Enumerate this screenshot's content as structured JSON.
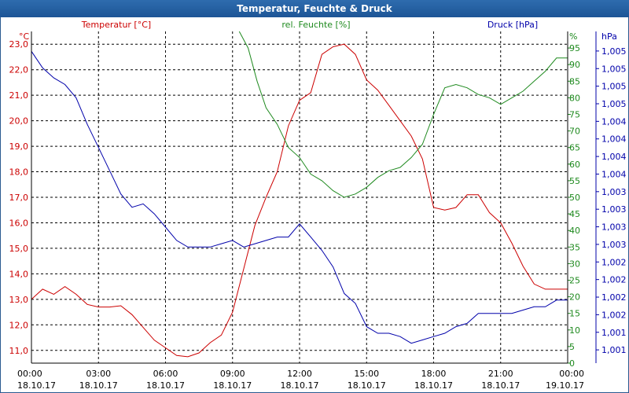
{
  "window": {
    "title": "Temperatur, Feuchte & Druck"
  },
  "colors": {
    "temperature": "#cc0000",
    "humidity": "#1f8a1f",
    "pressure": "#0000aa",
    "grid": "#000000",
    "axis": "#000000"
  },
  "chart_data": {
    "type": "line",
    "title": "Temperatur, Feuchte & Druck",
    "x_ticks": [
      {
        "hours": 0,
        "time": "00:00",
        "date": "18.10.17"
      },
      {
        "hours": 3,
        "time": "03:00",
        "date": "18.10.17"
      },
      {
        "hours": 6,
        "time": "06:00",
        "date": "18.10.17"
      },
      {
        "hours": 9,
        "time": "09:00",
        "date": "18.10.17"
      },
      {
        "hours": 12,
        "time": "12:00",
        "date": "18.10.17"
      },
      {
        "hours": 15,
        "time": "15:00",
        "date": "18.10.17"
      },
      {
        "hours": 18,
        "time": "18:00",
        "date": "18.10.17"
      },
      {
        "hours": 21,
        "time": "21:00",
        "date": "18.10.17"
      },
      {
        "hours": 24,
        "time": "00:00",
        "date": "19.10.17"
      }
    ],
    "xlim": [
      0,
      24
    ],
    "axes": {
      "temperature": {
        "label": "Temperatur [°C]",
        "unit": "°C",
        "ylim": [
          10.5,
          23.5
        ],
        "ticks": [
          {
            "v": 11.0,
            "t": "11,0"
          },
          {
            "v": 12.0,
            "t": "12,0"
          },
          {
            "v": 13.0,
            "t": "13,0"
          },
          {
            "v": 14.0,
            "t": "14,0"
          },
          {
            "v": 15.0,
            "t": "15,0"
          },
          {
            "v": 16.0,
            "t": "16,0"
          },
          {
            "v": 17.0,
            "t": "17,0"
          },
          {
            "v": 18.0,
            "t": "18,0"
          },
          {
            "v": 19.0,
            "t": "19,0"
          },
          {
            "v": 20.0,
            "t": "20,0"
          },
          {
            "v": 21.0,
            "t": "21,0"
          },
          {
            "v": 22.0,
            "t": "22,0"
          },
          {
            "v": 23.0,
            "t": "23,0"
          }
        ]
      },
      "humidity": {
        "label": "rel. Feuchte [%]",
        "unit": "%",
        "ylim": [
          0,
          100
        ],
        "ticks": [
          {
            "v": 0,
            "t": "0"
          },
          {
            "v": 5,
            "t": "5"
          },
          {
            "v": 10,
            "t": "10"
          },
          {
            "v": 15,
            "t": "15"
          },
          {
            "v": 20,
            "t": "20"
          },
          {
            "v": 25,
            "t": "25"
          },
          {
            "v": 30,
            "t": "30"
          },
          {
            "v": 35,
            "t": "35"
          },
          {
            "v": 40,
            "t": "40"
          },
          {
            "v": 45,
            "t": "45"
          },
          {
            "v": 50,
            "t": "50"
          },
          {
            "v": 55,
            "t": "55"
          },
          {
            "v": 60,
            "t": "60"
          },
          {
            "v": 65,
            "t": "65"
          },
          {
            "v": 70,
            "t": "70"
          },
          {
            "v": 75,
            "t": "75"
          },
          {
            "v": 80,
            "t": "80"
          },
          {
            "v": 85,
            "t": "85"
          },
          {
            "v": 90,
            "t": "90"
          },
          {
            "v": 95,
            "t": "95"
          }
        ]
      },
      "pressure": {
        "label": "Druck [hPa]",
        "unit": "hPa",
        "ylim": [
          0,
          100
        ],
        "ticks": [
          {
            "v": 4,
            "t": "1,001"
          },
          {
            "v": 9.3,
            "t": "1,001"
          },
          {
            "v": 14.6,
            "t": "1,002"
          },
          {
            "v": 19.9,
            "t": "1,002"
          },
          {
            "v": 25.2,
            "t": "1,002"
          },
          {
            "v": 30.5,
            "t": "1,002"
          },
          {
            "v": 35.8,
            "t": "1,003"
          },
          {
            "v": 41.1,
            "t": "1,003"
          },
          {
            "v": 46.4,
            "t": "1,003"
          },
          {
            "v": 51.7,
            "t": "1,003"
          },
          {
            "v": 57,
            "t": "1,004"
          },
          {
            "v": 62.3,
            "t": "1,004"
          },
          {
            "v": 67.6,
            "t": "1,004"
          },
          {
            "v": 72.9,
            "t": "1,004"
          },
          {
            "v": 78.2,
            "t": "1,005"
          },
          {
            "v": 83.5,
            "t": "1,005"
          },
          {
            "v": 88.8,
            "t": "1,005"
          },
          {
            "v": 94.1,
            "t": "1,005"
          }
        ]
      }
    },
    "series": [
      {
        "name": "Temperatur [°C]",
        "axis": "temperature",
        "x": [
          0,
          0.5,
          1,
          1.5,
          2,
          2.5,
          3,
          3.5,
          4,
          4.5,
          5,
          5.5,
          6,
          6.5,
          7,
          7.5,
          8,
          8.5,
          9,
          9.5,
          10,
          10.5,
          11,
          11.5,
          12,
          12.5,
          13,
          13.5,
          14,
          14.5,
          15,
          15.5,
          16,
          16.5,
          17,
          17.5,
          18,
          18.5,
          19,
          19.5,
          20,
          20.5,
          21,
          21.5,
          22,
          22.5,
          23,
          23.5,
          24
        ],
        "values": [
          13.0,
          13.4,
          13.2,
          13.5,
          13.2,
          12.8,
          12.7,
          12.7,
          12.75,
          12.4,
          11.9,
          11.4,
          11.1,
          10.8,
          10.75,
          10.9,
          11.3,
          11.6,
          12.5,
          14.2,
          15.9,
          17.0,
          18.0,
          19.8,
          20.8,
          21.1,
          22.6,
          22.9,
          23.0,
          22.6,
          21.6,
          21.2,
          20.6,
          20.0,
          19.4,
          18.5,
          16.6,
          16.5,
          16.6,
          17.1,
          17.1,
          16.4,
          16.0,
          15.2,
          14.3,
          13.6,
          13.4,
          13.4,
          13.4
        ]
      },
      {
        "name": "rel. Feuchte [%]",
        "axis": "humidity",
        "x": [
          9.3,
          9.7,
          10.1,
          10.5,
          11,
          11.5,
          12,
          12.5,
          13,
          13.5,
          14,
          14.5,
          15,
          15.5,
          16,
          16.5,
          17,
          17.5,
          18,
          18.5,
          19,
          19.5,
          20,
          20.5,
          21,
          21.5,
          22,
          22.5,
          23,
          23.5,
          24
        ],
        "values": [
          100,
          95,
          85,
          77,
          72,
          65,
          62,
          57,
          55,
          52,
          50,
          51,
          53,
          56,
          58,
          59,
          62,
          66,
          75,
          83,
          84,
          83,
          81,
          80,
          78,
          80,
          82,
          85,
          88,
          92,
          92
        ]
      },
      {
        "name": "Druck [hPa]",
        "axis": "pressure",
        "x": [
          0,
          0.5,
          1,
          1.5,
          2,
          2.5,
          3,
          3.5,
          4,
          4.5,
          5,
          5.5,
          6,
          6.5,
          7,
          7.5,
          8,
          8.5,
          9,
          9.5,
          10,
          10.5,
          11,
          11.5,
          12,
          12.5,
          13,
          13.5,
          14,
          14.5,
          15,
          15.5,
          16,
          16.5,
          17,
          17.5,
          18,
          18.5,
          19,
          19.5,
          20,
          20.5,
          21,
          21.5,
          22,
          22.5,
          23,
          23.5,
          24
        ],
        "values": [
          94,
          89,
          86,
          84,
          80,
          72,
          65,
          58,
          51,
          47,
          48,
          45,
          41,
          37,
          35,
          35,
          35,
          36,
          37,
          35,
          36,
          37,
          38,
          38,
          42,
          38,
          34,
          29,
          21,
          18,
          11,
          9,
          9,
          8,
          6,
          7,
          8,
          9,
          11,
          12,
          15,
          15,
          15,
          15,
          16,
          17,
          17,
          19,
          19
        ]
      }
    ]
  }
}
